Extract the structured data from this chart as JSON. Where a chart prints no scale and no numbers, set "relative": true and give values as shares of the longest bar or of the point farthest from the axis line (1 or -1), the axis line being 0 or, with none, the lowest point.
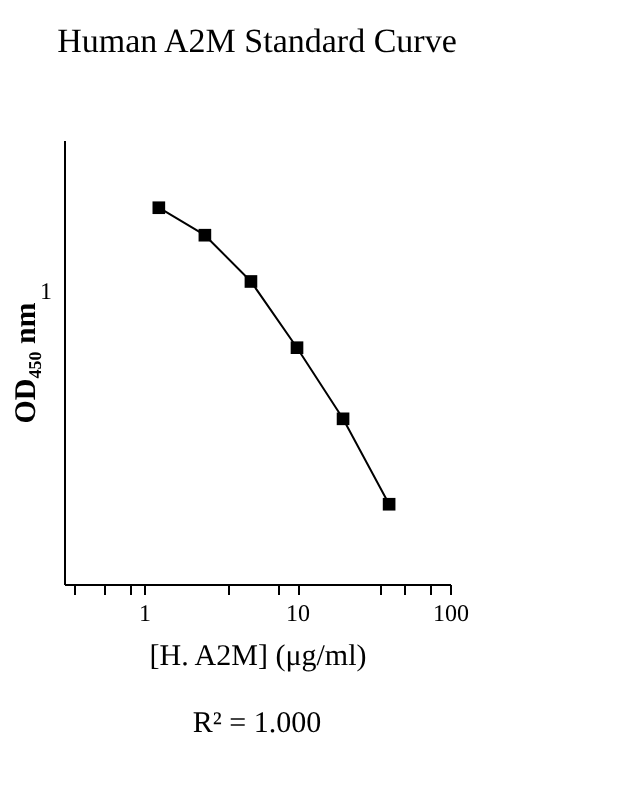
{
  "chart_data": {
    "type": "line",
    "title": "Human A2M Standard Curve",
    "xlabel": "[H. A2M] (μg/ml)",
    "ylabel": "OD₄₅₀ nm",
    "annotations": [
      "R² = 1.000",
      "1"
    ],
    "x": [
      1.25,
      2.5,
      5,
      10,
      20,
      40
    ],
    "series": [
      {
        "color": "#000000",
        "values": [
          1,
          0.927,
          0.804,
          0.628,
          0.439,
          0.212
        ]
      }
    ],
    "relative": true,
    "log": "x",
    "xlim": [
      0.3,
      100
    ],
    "xticks": [
      {
        "value": 0.35,
        "label": null
      },
      {
        "value": 0.55,
        "label": null
      },
      {
        "value": 0.8,
        "label": null
      },
      1,
      {
        "value": 3.5,
        "label": null
      },
      {
        "value": 7.5,
        "label": null
      },
      10,
      {
        "value": 35,
        "label": null
      },
      {
        "value": 50,
        "label": null
      },
      {
        "value": 75,
        "label": null
      },
      100
    ],
    "grid": false,
    "marker": "square",
    "line_style": "solid"
  }
}
